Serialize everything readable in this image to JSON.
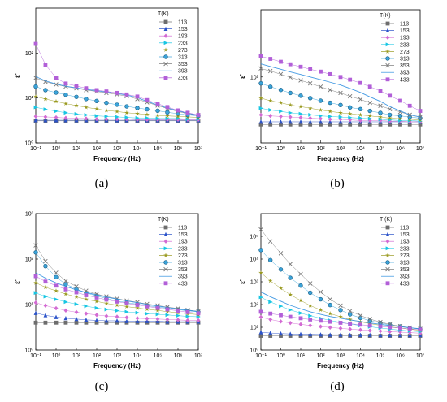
{
  "captions": [
    "(a)",
    "(b)",
    "(c)",
    "(d)"
  ],
  "colors": {
    "113": "#6d6d6d",
    "153": "#2a52c9",
    "193": "#d36bd3",
    "233": "#17c6e3",
    "273": "#9a9a20",
    "313": "#3aa3d9",
    "353": "#777777",
    "393": "#2f8fe0",
    "433": "#b25fd8"
  },
  "chart_data": [
    {
      "type": "scatter",
      "panel": "a",
      "xlabel": "Frequency (Hz)",
      "ylabel": "ε'",
      "xscale": "log",
      "yscale": "log",
      "xlim": [
        0.1,
        10000000
      ],
      "ylim": [
        1,
        1000
      ],
      "xticks": [
        [
          "10⁻¹",
          0.1
        ],
        [
          "10⁰",
          1
        ],
        [
          "10¹",
          10
        ],
        [
          "10²",
          100
        ],
        [
          "10³",
          1000
        ],
        [
          "10⁴",
          10000
        ],
        [
          "10⁵",
          100000
        ],
        [
          "10⁶",
          1000000
        ],
        [
          "10⁷",
          10000000
        ]
      ],
      "yticks": [
        [
          "10⁰",
          1
        ],
        [
          "10¹",
          10
        ],
        [
          "10²",
          100
        ]
      ],
      "legend_title": "T(K)",
      "legend_position": "top-right",
      "x": [
        0.1,
        0.3,
        1,
        3,
        10,
        30,
        100,
        300,
        1000,
        3000,
        10000,
        30000,
        100000,
        300000,
        1000000,
        3000000,
        10000000
      ],
      "series": [
        {
          "name": "113",
          "marker": "square",
          "values": [
            3.1,
            3.1,
            3.1,
            3.1,
            3.1,
            3.1,
            3.1,
            3.1,
            3.1,
            3.1,
            3.1,
            3.1,
            3.1,
            3.1,
            3.1,
            3.1,
            3.1
          ]
        },
        {
          "name": "153",
          "marker": "triangle",
          "values": [
            3.2,
            3.2,
            3.2,
            3.2,
            3.2,
            3.2,
            3.2,
            3.2,
            3.2,
            3.2,
            3.2,
            3.2,
            3.2,
            3.2,
            3.2,
            3.2,
            3.2
          ]
        },
        {
          "name": "193",
          "marker": "diamond",
          "values": [
            3.9,
            3.8,
            3.7,
            3.6,
            3.5,
            3.5,
            3.4,
            3.4,
            3.4,
            3.4,
            3.3,
            3.3,
            3.3,
            3.3,
            3.3,
            3.3,
            3.3
          ]
        },
        {
          "name": "233",
          "marker": "tri-right",
          "values": [
            6.2,
            5.6,
            5.1,
            4.7,
            4.4,
            4.2,
            4,
            3.9,
            3.8,
            3.7,
            3.6,
            3.6,
            3.5,
            3.5,
            3.5,
            3.4,
            3.4
          ]
        },
        {
          "name": "273",
          "marker": "star",
          "values": [
            10.8,
            9.5,
            8.4,
            7.5,
            6.8,
            6.2,
            5.7,
            5.3,
            5,
            4.7,
            4.5,
            4.3,
            4.1,
            4,
            3.9,
            3.8,
            3.7
          ]
        },
        {
          "name": "313",
          "marker": "circle",
          "values": [
            18,
            15,
            13.2,
            11.8,
            10.6,
            9.5,
            8.6,
            7.8,
            7.1,
            6.5,
            6,
            5.6,
            5.2,
            4.8,
            4.5,
            4.2,
            4
          ]
        },
        {
          "name": "353",
          "marker": "x",
          "values": [
            28,
            23,
            20,
            18,
            16.5,
            15,
            14,
            13,
            12,
            11,
            9.5,
            8,
            6.8,
            5.8,
            5,
            4.5,
            4.1
          ]
        },
        {
          "name": "393",
          "marker": "line",
          "values": [
            30,
            24,
            20.5,
            18.3,
            16.8,
            15.5,
            14.5,
            13.6,
            12.6,
            11.6,
            10.2,
            8.4,
            7,
            6,
            5.2,
            4.6,
            4.1
          ]
        },
        {
          "name": "433",
          "marker": "square",
          "values": [
            160,
            55,
            28,
            21,
            18.5,
            16.5,
            15,
            14,
            13,
            12,
            10.8,
            9,
            7.5,
            6.3,
            5.3,
            4.7,
            4.2
          ]
        }
      ]
    },
    {
      "type": "scatter",
      "panel": "b",
      "xlabel": "Frequency (Hz)",
      "ylabel": "ε'",
      "xscale": "log",
      "yscale": "log",
      "xlim": [
        0.1,
        10000000
      ],
      "ylim": [
        1.3,
        80
      ],
      "xticks": [
        [
          "10⁻¹",
          0.1
        ],
        [
          "10⁰",
          1
        ],
        [
          "10¹",
          10
        ],
        [
          "10²",
          100
        ],
        [
          "10³",
          1000
        ],
        [
          "10⁴",
          10000
        ],
        [
          "10⁵",
          100000
        ],
        [
          "10⁶",
          1000000
        ],
        [
          "10⁷",
          10000000
        ]
      ],
      "yticks": [
        [
          "10¹",
          10
        ]
      ],
      "legend_title": "T(K)",
      "legend_position": "top-right",
      "x": [
        0.1,
        0.3,
        1,
        3,
        10,
        30,
        100,
        300,
        1000,
        3000,
        10000,
        30000,
        100000,
        300000,
        1000000,
        3000000,
        10000000
      ],
      "series": [
        {
          "name": "113",
          "marker": "square",
          "values": [
            2.3,
            2.3,
            2.3,
            2.3,
            2.3,
            2.3,
            2.3,
            2.3,
            2.3,
            2.3,
            2.3,
            2.3,
            2.3,
            2.3,
            2.3,
            2.3,
            2.3
          ]
        },
        {
          "name": "153",
          "marker": "triangle",
          "values": [
            2.5,
            2.5,
            2.5,
            2.5,
            2.5,
            2.5,
            2.5,
            2.5,
            2.5,
            2.5,
            2.5,
            2.5,
            2.5,
            2.5,
            2.5,
            2.5,
            2.5
          ]
        },
        {
          "name": "193",
          "marker": "diamond",
          "values": [
            3.1,
            3,
            2.95,
            2.9,
            2.85,
            2.8,
            2.75,
            2.7,
            2.7,
            2.65,
            2.6,
            2.6,
            2.6,
            2.55,
            2.55,
            2.5,
            2.5
          ]
        },
        {
          "name": "233",
          "marker": "tri-right",
          "values": [
            3.8,
            3.6,
            3.45,
            3.3,
            3.2,
            3.1,
            3,
            2.95,
            2.9,
            2.85,
            2.8,
            2.75,
            2.7,
            2.65,
            2.6,
            2.6,
            2.55
          ]
        },
        {
          "name": "273",
          "marker": "star",
          "values": [
            5.2,
            4.8,
            4.5,
            4.2,
            4,
            3.8,
            3.6,
            3.45,
            3.3,
            3.2,
            3.1,
            3,
            2.9,
            2.8,
            2.75,
            2.7,
            2.65
          ]
        },
        {
          "name": "313",
          "marker": "circle",
          "values": [
            8.2,
            7.4,
            6.7,
            6.1,
            5.6,
            5.2,
            4.8,
            4.5,
            4.2,
            3.9,
            3.7,
            3.5,
            3.3,
            3.1,
            3,
            2.9,
            2.8
          ]
        },
        {
          "name": "353",
          "marker": "x",
          "values": [
            13,
            12,
            10.9,
            9.9,
            9,
            8.2,
            7.4,
            6.7,
            6.1,
            5.5,
            5,
            4.5,
            4.1,
            3.7,
            3.4,
            3.1,
            2.9
          ]
        },
        {
          "name": "393",
          "marker": "line",
          "values": [
            15,
            13.8,
            12.7,
            11.7,
            10.8,
            10,
            9.2,
            8.5,
            7.8,
            7,
            6.2,
            5.4,
            4.7,
            4,
            3.5,
            3.1,
            2.9
          ]
        },
        {
          "name": "433",
          "marker": "square",
          "values": [
            19,
            17.5,
            16,
            14.8,
            13.7,
            12.7,
            11.8,
            10.9,
            10,
            9.2,
            8.3,
            7.4,
            6.5,
            5.6,
            4.8,
            4.1,
            3.5
          ]
        }
      ]
    },
    {
      "type": "scatter",
      "panel": "c",
      "xlabel": "Frequency (Hz)",
      "ylabel": "ε'",
      "xscale": "log",
      "yscale": "log",
      "xlim": [
        0.1,
        10000000
      ],
      "ylim": [
        1,
        1000
      ],
      "xticks": [
        [
          "10⁻¹",
          0.1
        ],
        [
          "10⁰",
          1
        ],
        [
          "10¹",
          10
        ],
        [
          "10²",
          100
        ],
        [
          "10³",
          1000
        ],
        [
          "10⁴",
          10000
        ],
        [
          "10⁵",
          100000
        ],
        [
          "10⁶",
          1000000
        ],
        [
          "10⁷",
          10000000
        ]
      ],
      "yticks": [
        [
          "10⁰",
          1
        ],
        [
          "10¹",
          10
        ],
        [
          "10²",
          100
        ],
        [
          "10³",
          1000
        ]
      ],
      "legend_title": "T(K)",
      "legend_position": "top-right",
      "x": [
        0.1,
        0.3,
        1,
        3,
        10,
        30,
        100,
        300,
        1000,
        3000,
        10000,
        30000,
        100000,
        300000,
        1000000,
        3000000,
        10000000
      ],
      "series": [
        {
          "name": "113",
          "marker": "square",
          "values": [
            4,
            4,
            4,
            4,
            4,
            4,
            4,
            4,
            4,
            4,
            4,
            4,
            4,
            4,
            4,
            4,
            4
          ]
        },
        {
          "name": "153",
          "marker": "triangle",
          "values": [
            6.5,
            5.8,
            5.3,
            5,
            4.8,
            4.6,
            4.5,
            4.4,
            4.4,
            4.3,
            4.3,
            4.3,
            4.3,
            4.2,
            4.2,
            4.2,
            4.2
          ]
        },
        {
          "name": "193",
          "marker": "diamond",
          "values": [
            11,
            9.5,
            8.3,
            7.4,
            6.8,
            6.3,
            5.9,
            5.6,
            5.4,
            5.2,
            5,
            4.9,
            4.8,
            4.7,
            4.6,
            4.5,
            4.5
          ]
        },
        {
          "name": "233",
          "marker": "tri-right",
          "values": [
            18,
            15,
            13,
            11.4,
            10.2,
            9.2,
            8.4,
            7.8,
            7.3,
            6.9,
            6.6,
            6.3,
            6.1,
            5.9,
            5.7,
            5.5,
            5.4
          ]
        },
        {
          "name": "273",
          "marker": "star",
          "values": [
            30,
            24,
            20,
            17,
            14.8,
            13,
            11.7,
            10.6,
            9.7,
            9,
            8.4,
            7.9,
            7.4,
            7,
            6.6,
            6.3,
            6
          ]
        },
        {
          "name": "313",
          "marker": "circle",
          "values": [
            140,
            70,
            40,
            28,
            22,
            18,
            15.5,
            13.5,
            12,
            11,
            10.2,
            9.5,
            8.8,
            8.2,
            7.7,
            7.3,
            6.9
          ]
        },
        {
          "name": "353",
          "marker": "x",
          "values": [
            200,
            90,
            50,
            33,
            25,
            20,
            17,
            15,
            13.5,
            12.2,
            11.2,
            10.3,
            9.5,
            8.8,
            8.2,
            7.6,
            7.1
          ]
        },
        {
          "name": "393",
          "marker": "line",
          "values": [
            50,
            38,
            30,
            25,
            21,
            18.5,
            16.3,
            14.6,
            13.2,
            12,
            11,
            10.1,
            9.3,
            8.6,
            8,
            7.5,
            7
          ]
        },
        {
          "name": "433",
          "marker": "square",
          "values": [
            42,
            32,
            26,
            21.5,
            18.5,
            16,
            14.2,
            12.8,
            11.6,
            10.6,
            9.8,
            9.1,
            8.4,
            7.8,
            7.3,
            6.8,
            6.4
          ]
        }
      ]
    },
    {
      "type": "scatter",
      "panel": "d",
      "xlabel": "Frequency (Hz)",
      "ylabel": "ε'",
      "xscale": "log",
      "yscale": "log",
      "xlim": [
        0.1,
        10000000
      ],
      "ylim": [
        1,
        1000000
      ],
      "xticks": [
        [
          "10⁻¹",
          0.1
        ],
        [
          "10⁰",
          1
        ],
        [
          "10¹",
          10
        ],
        [
          "10²",
          100
        ],
        [
          "10³",
          1000
        ],
        [
          "10⁴",
          10000
        ],
        [
          "10⁵",
          100000
        ],
        [
          "10⁶",
          1000000
        ],
        [
          "10⁷",
          10000000
        ]
      ],
      "yticks": [
        [
          "10⁰",
          1
        ],
        [
          "10¹",
          10
        ],
        [
          "10²",
          100
        ],
        [
          "10³",
          1000
        ],
        [
          "10⁴",
          10000
        ],
        [
          "10⁵",
          100000
        ]
      ],
      "legend_title": "T (K)",
      "legend_position": "top-right",
      "x": [
        0.1,
        0.3,
        1,
        3,
        10,
        30,
        100,
        300,
        1000,
        3000,
        10000,
        30000,
        100000,
        300000,
        1000000,
        3000000,
        10000000
      ],
      "series": [
        {
          "name": "113",
          "marker": "square",
          "values": [
            4.2,
            4.2,
            4.2,
            4.2,
            4.2,
            4.2,
            4.2,
            4.2,
            4.2,
            4.2,
            4.2,
            4.2,
            4.2,
            4.2,
            4.2,
            4.2,
            4.2
          ]
        },
        {
          "name": "153",
          "marker": "triangle",
          "values": [
            6,
            5.6,
            5.3,
            5.1,
            5,
            4.9,
            4.8,
            4.7,
            4.7,
            4.6,
            4.6,
            4.6,
            4.5,
            4.5,
            4.5,
            4.5,
            4.5
          ]
        },
        {
          "name": "193",
          "marker": "diamond",
          "values": [
            28,
            22,
            18,
            15.5,
            13.5,
            12,
            10.8,
            9.8,
            9,
            8.3,
            7.7,
            7.2,
            6.8,
            6.4,
            6.1,
            5.8,
            5.5
          ]
        },
        {
          "name": "233",
          "marker": "tri-right",
          "values": [
            210,
            130,
            85,
            58,
            42,
            32,
            25,
            20,
            16.5,
            14,
            12,
            10.5,
            9.3,
            8.3,
            7.5,
            6.9,
            6.4
          ]
        },
        {
          "name": "273",
          "marker": "star",
          "values": [
            2500,
            1100,
            520,
            270,
            150,
            90,
            58,
            40,
            29,
            22,
            17.5,
            14.5,
            12.2,
            10.5,
            9.2,
            8.2,
            7.4
          ]
        },
        {
          "name": "313",
          "marker": "circle",
          "values": [
            25000,
            9000,
            3500,
            1500,
            680,
            330,
            170,
            95,
            57,
            37,
            26,
            19.5,
            15.5,
            12.8,
            10.8,
            9.4,
            8.3
          ]
        },
        {
          "name": "353",
          "marker": "x",
          "values": [
            200000,
            60000,
            18000,
            6000,
            2200,
            850,
            360,
            170,
            90,
            52,
            33,
            23,
            17,
            13.5,
            11.2,
            9.6,
            8.5
          ]
        },
        {
          "name": "393",
          "marker": "line",
          "values": [
            360,
            220,
            140,
            92,
            65,
            48,
            37,
            30,
            25,
            21,
            18,
            15.5,
            13.5,
            11.9,
            10.6,
            9.5,
            8.6
          ]
        },
        {
          "name": "433",
          "marker": "square",
          "values": [
            48,
            40,
            34,
            29,
            25,
            22,
            19.5,
            17.5,
            15.8,
            14.3,
            13,
            11.9,
            10.9,
            10,
            9.2,
            8.5,
            7.9
          ]
        }
      ]
    }
  ]
}
